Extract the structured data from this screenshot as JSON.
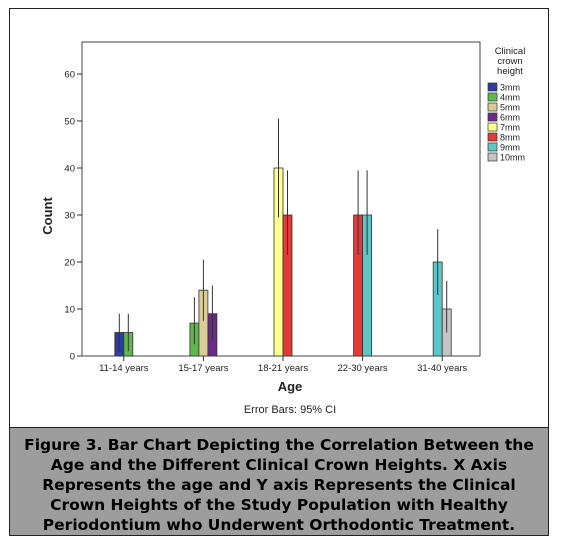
{
  "chart_data": {
    "type": "bar",
    "xlabel": "Age",
    "ylabel": "Count",
    "ylim": [
      0,
      60
    ],
    "yticks": [
      0,
      10,
      20,
      30,
      40,
      50,
      60
    ],
    "categories": [
      "11-14 years",
      "15-17 years",
      "18-21 years",
      "22-30 years",
      "31-40 years"
    ],
    "legend_title": "Clinical crown height",
    "legend_position": "right",
    "footnote": "Error Bars: 95% CI",
    "series": [
      {
        "name": "3mm",
        "color": "#2c3d9c",
        "values": [
          5,
          null,
          null,
          null,
          null
        ],
        "ci": [
          [
            1,
            9
          ],
          null,
          null,
          null,
          null
        ]
      },
      {
        "name": "4mm",
        "color": "#5fb84a",
        "values": [
          5,
          7,
          null,
          null,
          null
        ],
        "ci": [
          [
            1,
            9
          ],
          [
            2.5,
            12.5
          ],
          null,
          null,
          null
        ]
      },
      {
        "name": "5mm",
        "color": "#d9cc96",
        "values": [
          null,
          14,
          null,
          null,
          null
        ],
        "ci": [
          null,
          [
            7.5,
            20.5
          ],
          null,
          null,
          null
        ]
      },
      {
        "name": "6mm",
        "color": "#6b2a85",
        "values": [
          null,
          9,
          null,
          null,
          null
        ],
        "ci": [
          null,
          [
            3.5,
            15
          ],
          null,
          null,
          null
        ]
      },
      {
        "name": "7mm",
        "color": "#ffff8c",
        "values": [
          null,
          null,
          40,
          null,
          null
        ],
        "ci": [
          null,
          null,
          [
            29.5,
            50.5
          ],
          null,
          null
        ]
      },
      {
        "name": "8mm",
        "color": "#e23a3a",
        "values": [
          null,
          null,
          30,
          30,
          null
        ],
        "ci": [
          null,
          null,
          [
            21.5,
            39.5
          ],
          [
            21.5,
            39.5
          ],
          null
        ]
      },
      {
        "name": "9mm",
        "color": "#5ec6c6",
        "values": [
          null,
          null,
          null,
          30,
          20
        ],
        "ci": [
          null,
          null,
          null,
          [
            21.5,
            39.5
          ],
          [
            13,
            27
          ]
        ]
      },
      {
        "name": "10mm",
        "color": "#c4c4c4",
        "values": [
          null,
          null,
          null,
          null,
          10
        ],
        "ci": [
          null,
          null,
          null,
          null,
          [
            5,
            16
          ]
        ]
      }
    ]
  },
  "caption": "Figure 3. Bar Chart Depicting the Correlation Between the Age and the Different Clinical Crown Heights. X Axis Represents the age and Y axis Represents the Clinical Crown Heights of the Study Population with Healthy Periodontium who Underwent Orthodontic Treatment."
}
